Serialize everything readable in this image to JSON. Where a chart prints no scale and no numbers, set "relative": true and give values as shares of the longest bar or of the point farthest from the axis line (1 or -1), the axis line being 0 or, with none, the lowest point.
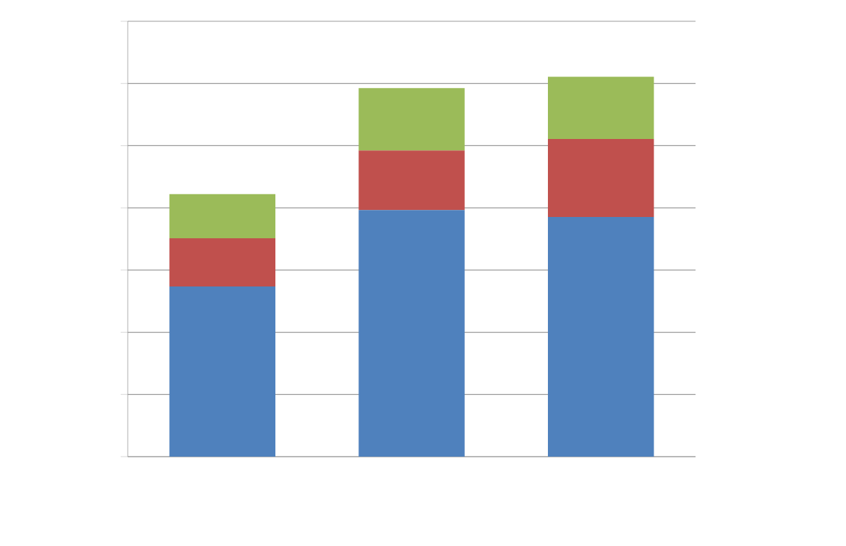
{
  "chart_data": {
    "type": "bar",
    "stacked": true,
    "relative": true,
    "grid": "y",
    "categories": [
      null,
      null,
      null
    ],
    "series": [
      {
        "color": "#4f81bd",
        "values": [
          0.448,
          0.649,
          0.631
        ]
      },
      {
        "color": "#c0504d",
        "values": [
          0.127,
          0.157,
          0.205
        ]
      },
      {
        "color": "#9bbb59",
        "values": [
          0.116,
          0.164,
          0.164
        ]
      }
    ]
  }
}
